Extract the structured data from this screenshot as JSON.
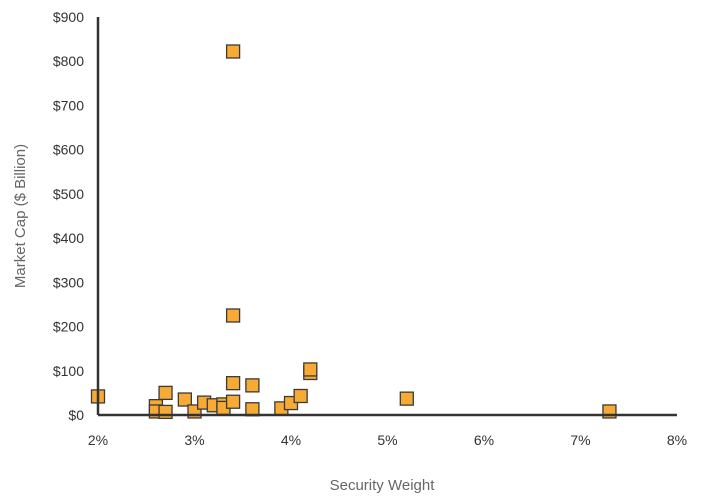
{
  "chart_data": {
    "type": "scatter",
    "title": "",
    "xlabel": "Security Weight",
    "ylabel": "Market Cap ($ Billion)",
    "xlim": [
      0.02,
      0.08
    ],
    "ylim": [
      0,
      900
    ],
    "x_ticks": [
      0.02,
      0.03,
      0.04,
      0.05,
      0.06,
      0.07,
      0.08
    ],
    "x_tick_labels": [
      "2%",
      "3%",
      "4%",
      "5%",
      "6%",
      "7%",
      "8%"
    ],
    "y_ticks": [
      0,
      100,
      200,
      300,
      400,
      500,
      600,
      700,
      800,
      900
    ],
    "y_tick_labels": [
      "$0",
      "$100",
      "$200",
      "$300",
      "$400",
      "$500",
      "$600",
      "$700",
      "$800",
      "$900"
    ],
    "grid": false,
    "legend": "none",
    "marker": "square",
    "colors": {
      "marker_fill": "#F7AA34",
      "marker_stroke": "#3a3a3a",
      "axis": "#333333"
    },
    "series": [
      {
        "points": [
          {
            "x": 0.034,
            "y": 822
          },
          {
            "x": 0.034,
            "y": 225
          },
          {
            "x": 0.02,
            "y": 42
          },
          {
            "x": 0.026,
            "y": 20
          },
          {
            "x": 0.026,
            "y": 8
          },
          {
            "x": 0.027,
            "y": 50
          },
          {
            "x": 0.027,
            "y": 7
          },
          {
            "x": 0.029,
            "y": 35
          },
          {
            "x": 0.03,
            "y": 8
          },
          {
            "x": 0.031,
            "y": 28
          },
          {
            "x": 0.032,
            "y": 22
          },
          {
            "x": 0.033,
            "y": 24
          },
          {
            "x": 0.033,
            "y": 16
          },
          {
            "x": 0.034,
            "y": 72
          },
          {
            "x": 0.034,
            "y": 30
          },
          {
            "x": 0.036,
            "y": 67
          },
          {
            "x": 0.036,
            "y": 13
          },
          {
            "x": 0.039,
            "y": 15
          },
          {
            "x": 0.04,
            "y": 27
          },
          {
            "x": 0.041,
            "y": 43
          },
          {
            "x": 0.042,
            "y": 95
          },
          {
            "x": 0.042,
            "y": 103
          },
          {
            "x": 0.052,
            "y": 37
          },
          {
            "x": 0.073,
            "y": 8
          }
        ]
      }
    ]
  }
}
